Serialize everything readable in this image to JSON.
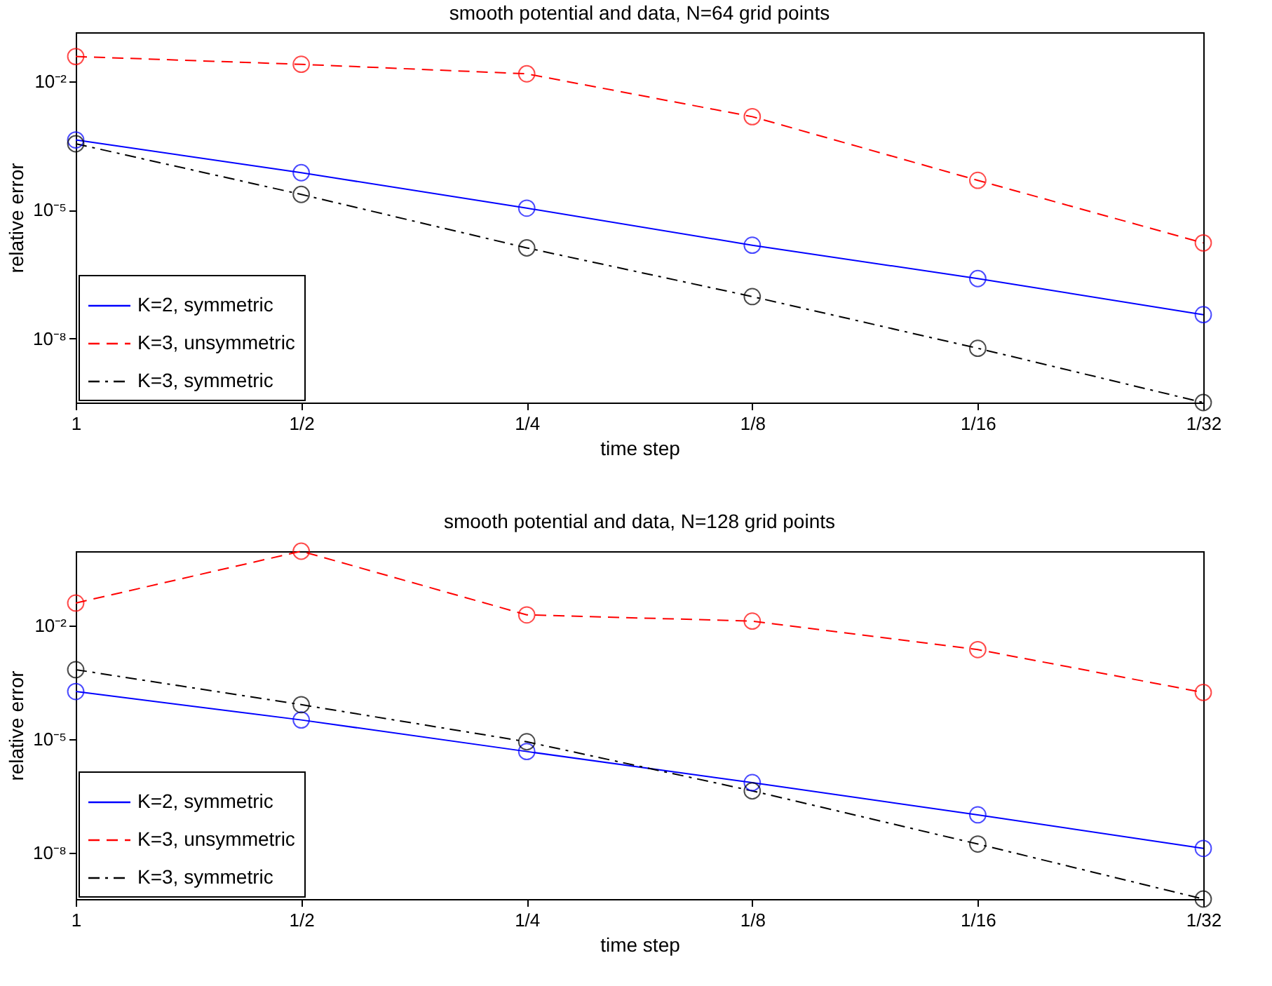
{
  "chart_data": [
    {
      "type": "line",
      "title": "smooth potential and data, N=64 grid points",
      "xlabel": "time step",
      "ylabel": "relative error",
      "categories": [
        "1",
        "1/2",
        "1/4",
        "1/8",
        "1/16",
        "1/32"
      ],
      "log": true,
      "ylim": [
        3.2e-10,
        0.14
      ],
      "yticks": [
        {
          "value": 1e-08,
          "label": "10⁻⁸"
        },
        {
          "value": 1e-05,
          "label": "10⁻⁵"
        },
        {
          "value": 0.01,
          "label": "10⁻²"
        }
      ],
      "grid": false,
      "legend": "bottom left",
      "marker": "circle",
      "series": [
        {
          "name": "K=2, symmetric",
          "color": "#0000ff",
          "line_style": "solid",
          "values": [
            0.00043,
            7.4e-05,
            1.1e-05,
            1.5e-06,
            2.5e-07,
            3.6e-08
          ]
        },
        {
          "name": "K=3, unsymmetric",
          "color": "#ff0000",
          "line_style": "dashed",
          "values": [
            0.038,
            0.025,
            0.015,
            0.0015,
            4.9e-05,
            1.7e-06
          ]
        },
        {
          "name": "K=3, symmetric",
          "color": "#000000",
          "line_style": "dashdot",
          "values": [
            0.00035,
            2.3e-05,
            1.3e-06,
            9.5e-08,
            5.9e-09,
            3.2e-10
          ]
        }
      ]
    },
    {
      "type": "line",
      "title": "smooth potential and data, N=128 grid points",
      "xlabel": "time step",
      "ylabel": "relative error",
      "categories": [
        "1",
        "1/2",
        "1/4",
        "1/8",
        "1/16",
        "1/32"
      ],
      "log": true,
      "ylim": [
        6e-10,
        0.91
      ],
      "yticks": [
        {
          "value": 1e-08,
          "label": "10⁻⁸"
        },
        {
          "value": 1e-05,
          "label": "10⁻⁵"
        },
        {
          "value": 0.01,
          "label": "10⁻²"
        }
      ],
      "grid": false,
      "legend": "bottom left",
      "marker": "circle",
      "series": [
        {
          "name": "K=2, symmetric",
          "color": "#0000ff",
          "line_style": "solid",
          "values": [
            0.00018,
            3.2e-05,
            4.7e-06,
            7.1e-07,
            1e-07,
            1.3e-08
          ]
        },
        {
          "name": "K=3, unsymmetric",
          "color": "#ff0000",
          "line_style": "dashed",
          "values": [
            0.039,
            0.91,
            0.019,
            0.013,
            0.0023,
            0.00017
          ]
        },
        {
          "name": "K=3, symmetric",
          "color": "#000000",
          "line_style": "dashdot",
          "values": [
            0.00068,
            8.1e-05,
            8.5e-06,
            4.3e-07,
            1.7e-08,
            6e-10
          ]
        }
      ]
    }
  ]
}
